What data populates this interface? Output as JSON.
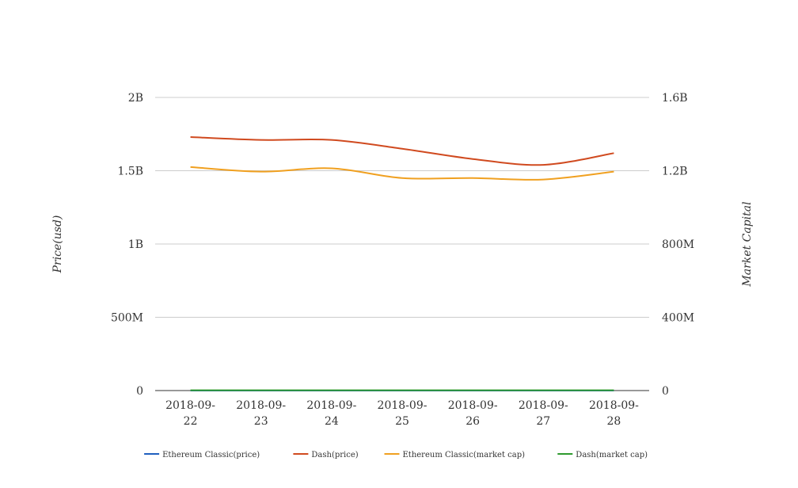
{
  "chart_data": {
    "type": "line",
    "categories": [
      "2018-09-22",
      "2018-09-23",
      "2018-09-24",
      "2018-09-25",
      "2018-09-26",
      "2018-09-27",
      "2018-09-28"
    ],
    "category_label_lines": [
      [
        "2018-09-",
        "22"
      ],
      [
        "2018-09-",
        "23"
      ],
      [
        "2018-09-",
        "24"
      ],
      [
        "2018-09-",
        "25"
      ],
      [
        "2018-09-",
        "26"
      ],
      [
        "2018-09-",
        "27"
      ],
      [
        "2018-09-",
        "28"
      ]
    ],
    "ylabel": "Price(usd)",
    "y2label": "Market Capital",
    "ylim": [
      0,
      2000000000
    ],
    "y2lim": [
      0,
      1600000000
    ],
    "y_ticks": [
      {
        "value": 0,
        "label": "0"
      },
      {
        "value": 500000000,
        "label": "500M"
      },
      {
        "value": 1000000000,
        "label": "1B"
      },
      {
        "value": 1500000000,
        "label": "1.5B"
      },
      {
        "value": 2000000000,
        "label": "2B"
      }
    ],
    "y2_ticks": [
      {
        "value": 0,
        "label": "0"
      },
      {
        "value": 400000000,
        "label": "400M"
      },
      {
        "value": 800000000,
        "label": "800M"
      },
      {
        "value": 1200000000,
        "label": "1.2B"
      },
      {
        "value": 1600000000,
        "label": "1.6B"
      }
    ],
    "grid": true,
    "legend_position": "bottom",
    "series": [
      {
        "name": "Ethereum Classic(price)",
        "axis": "left",
        "color": "#1f5fbf",
        "values": [
          11.2,
          11.1,
          11.3,
          10.9,
          10.8,
          10.7,
          11.0
        ]
      },
      {
        "name": "Dash(price)",
        "axis": "left",
        "color": "#d04a1f",
        "values": [
          1730000000,
          1710000000,
          1710000000,
          1650000000,
          1580000000,
          1540000000,
          1620000000
        ]
      },
      {
        "name": "Ethereum Classic(market cap)",
        "axis": "right",
        "color": "#f0a020",
        "values": [
          1220000000,
          1195000000,
          1213000000,
          1160000000,
          1160000000,
          1152000000,
          1195000000
        ]
      },
      {
        "name": "Dash(market cap)",
        "axis": "right",
        "color": "#2e9a2e",
        "values": [
          1500000,
          1500000,
          1500000,
          1400000,
          1400000,
          1400000,
          1400000
        ]
      }
    ]
  }
}
